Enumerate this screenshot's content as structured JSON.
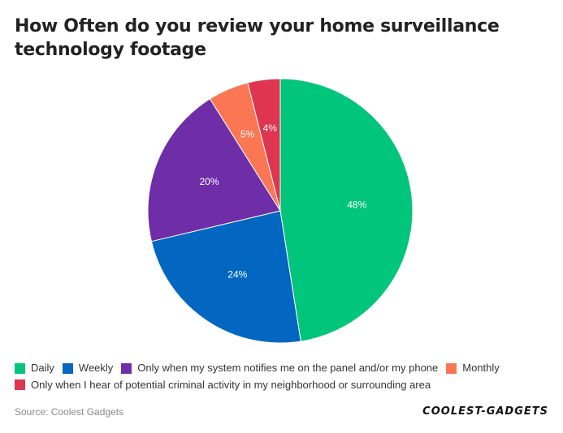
{
  "title": "How Often do you review your home surveillance technology footage",
  "source": "Source: Coolest Gadgets",
  "brand": "COOLEST-GADGETS",
  "chart_data": {
    "type": "pie",
    "title": "How Often do you review your home surveillance technology footage",
    "series": [
      {
        "name": "Daily",
        "value": 48,
        "label": "48%",
        "color": "#00c57a"
      },
      {
        "name": "Weekly",
        "value": 24,
        "label": "24%",
        "color": "#0367c2"
      },
      {
        "name": "Only when my system notifies me on the panel and/or my phone",
        "value": 20,
        "label": "20%",
        "color": "#6f2da8"
      },
      {
        "name": "Monthly",
        "value": 5,
        "label": "5%",
        "color": "#fb7653"
      },
      {
        "name": "Only when I hear of potential criminal activity in my neighborhood or surrounding area",
        "value": 4,
        "label": "4%",
        "color": "#de3551"
      }
    ],
    "legend_position": "bottom-left",
    "start_angle": "top, clockwise"
  }
}
